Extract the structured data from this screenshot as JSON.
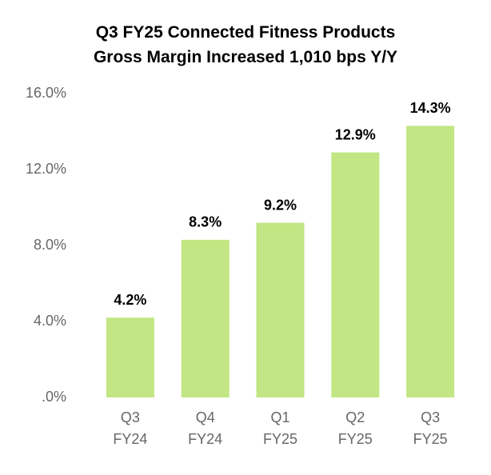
{
  "chart_data": {
    "type": "bar",
    "title": "Q3 FY25 Connected Fitness Products\nGross Margin Increased 1,010 bps Y/Y",
    "categories": [
      "Q3\nFY24",
      "Q4\nFY24",
      "Q1\nFY25",
      "Q2\nFY25",
      "Q3\nFY25"
    ],
    "values": [
      4.2,
      8.3,
      9.2,
      12.9,
      14.3
    ],
    "value_labels": [
      "4.2%",
      "8.3%",
      "9.2%",
      "12.9%",
      "14.3%"
    ],
    "color": "#c1e683",
    "ylim": [
      0,
      16
    ],
    "yticks": [
      {
        "value": 0,
        "label": ".0%"
      },
      {
        "value": 4,
        "label": "4.0%"
      },
      {
        "value": 8,
        "label": "8.0%"
      },
      {
        "value": 12,
        "label": "12.0%"
      },
      {
        "value": 16,
        "label": "16.0%"
      }
    ],
    "grid": false
  }
}
